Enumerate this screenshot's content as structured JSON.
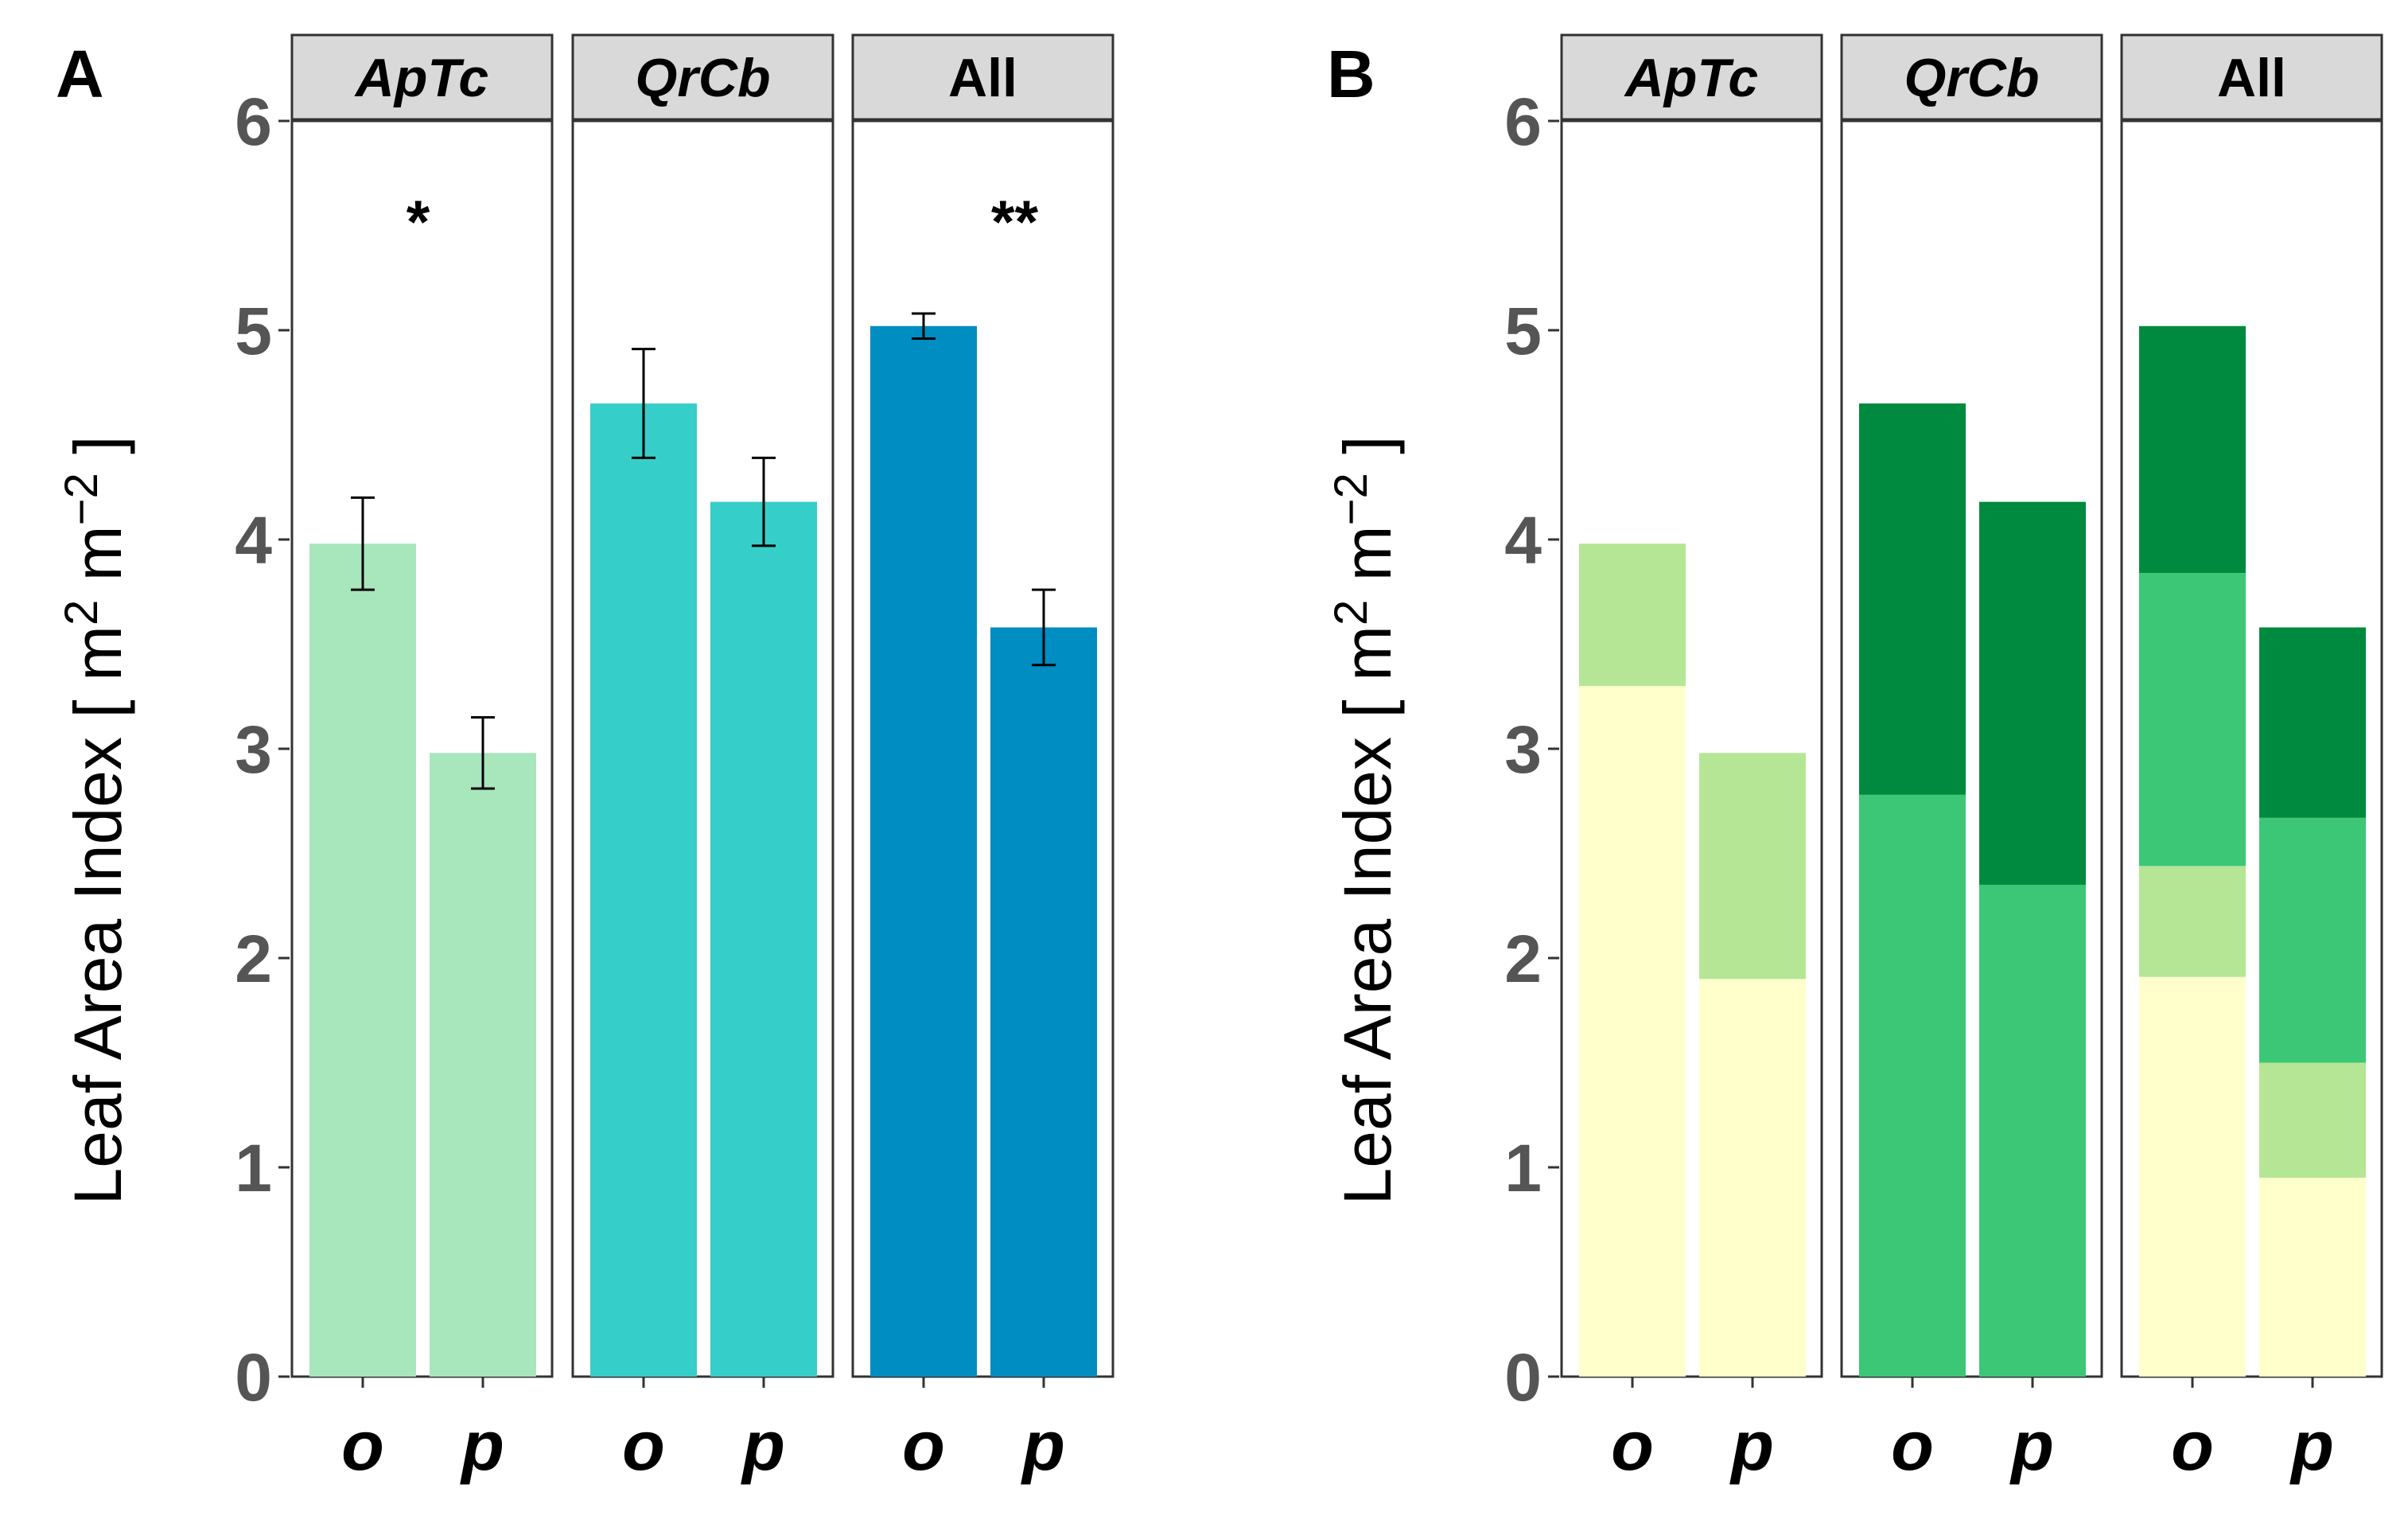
{
  "chart_data": [
    {
      "panel": "A",
      "type": "bar",
      "ylabel": "Leaf Area Index [ m² m⁻² ]",
      "ylabel_parts": {
        "main": "Leaf Area Index [ m",
        "sup1": "2",
        "mid": " m",
        "sup2": "−2",
        "end": " ]"
      },
      "ylim": [
        0,
        6
      ],
      "yticks": [
        "0",
        "1",
        "2",
        "3",
        "4",
        "5",
        "6"
      ],
      "categories": [
        "o",
        "p"
      ],
      "facets": [
        {
          "label": "ApTc",
          "italic": true,
          "color": "#a8e6bc",
          "values": [
            3.98,
            2.98
          ],
          "errors": [
            0.22,
            0.17
          ],
          "significance": "*"
        },
        {
          "label": "QrCb",
          "italic": true,
          "color": "#36cec8",
          "values": [
            4.65,
            4.18
          ],
          "errors": [
            0.26,
            0.21
          ],
          "significance": ""
        },
        {
          "label": "All",
          "italic": false,
          "color": "#008dc2",
          "values": [
            5.02,
            3.58
          ],
          "errors": [
            0.06,
            0.18
          ],
          "significance": "**"
        }
      ]
    },
    {
      "panel": "B",
      "type": "stacked-bar",
      "ylabel": "Leaf Area Index [ m² m⁻² ]",
      "ylabel_parts": {
        "main": "Leaf Area Index [ m",
        "sup1": "2",
        "mid": " m",
        "sup2": "−2",
        "end": " ]"
      },
      "ylim": [
        0,
        6
      ],
      "yticks": [
        "0",
        "1",
        "2",
        "3",
        "4",
        "5",
        "6"
      ],
      "categories": [
        "o",
        "p"
      ],
      "layer_colors": [
        "#ffffcc",
        "#b5e695",
        "#3cc776",
        "#008a3f"
      ],
      "facets": [
        {
          "label": "ApTc",
          "italic": true,
          "stacks": [
            [
              3.3,
              0.68,
              0,
              0
            ],
            [
              1.9,
              1.08,
              0,
              0
            ]
          ]
        },
        {
          "label": "QrCb",
          "italic": true,
          "stacks": [
            [
              0,
              0,
              2.78,
              1.87
            ],
            [
              0,
              0,
              2.35,
              1.83
            ]
          ]
        },
        {
          "label": "All",
          "italic": false,
          "stacks": [
            [
              1.91,
              0.53,
              1.4,
              1.18
            ],
            [
              0.95,
              0.55,
              1.17,
              0.91
            ]
          ]
        }
      ]
    }
  ]
}
